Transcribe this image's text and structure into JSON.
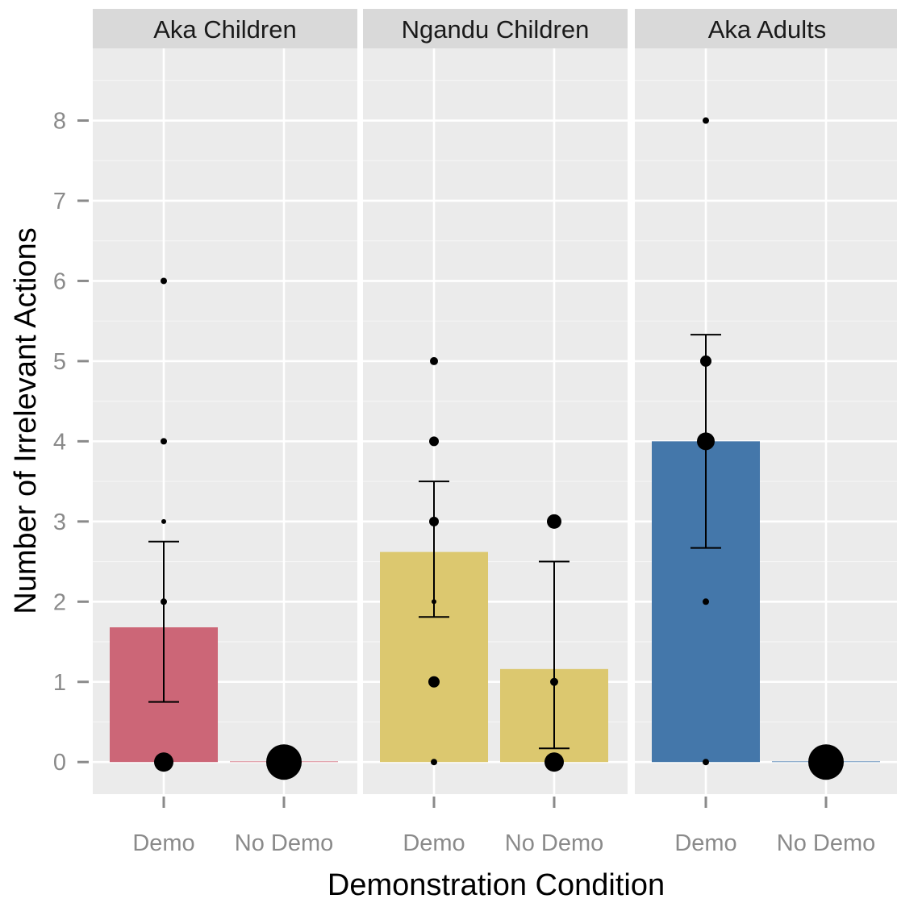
{
  "chart_data": {
    "type": "bar",
    "xlabel": "Demonstration Condition",
    "ylabel": "Number of Irrelevant Actions",
    "ylim": [
      -0.4,
      8.9
    ],
    "y_ticks": [
      0,
      1,
      2,
      3,
      4,
      5,
      6,
      7,
      8
    ],
    "categories": [
      "Demo",
      "No Demo"
    ],
    "grid": true,
    "panels": [
      {
        "label": "Aka Children",
        "bars": [
          {
            "category": "Demo",
            "value": 1.68,
            "error_low": 0.75,
            "error_high": 2.75,
            "color": "#cc6677"
          },
          {
            "category": "No Demo",
            "value": 0.0,
            "error_low": null,
            "error_high": null,
            "color": "#cc6677"
          }
        ],
        "points": [
          {
            "category": "Demo",
            "y": 0,
            "size": 12
          },
          {
            "category": "Demo",
            "y": 2,
            "size": 4
          },
          {
            "category": "Demo",
            "y": 3,
            "size": 3
          },
          {
            "category": "Demo",
            "y": 4,
            "size": 4
          },
          {
            "category": "Demo",
            "y": 6,
            "size": 4
          },
          {
            "category": "No Demo",
            "y": 0,
            "size": 22
          }
        ]
      },
      {
        "label": "Ngandu Children",
        "bars": [
          {
            "category": "Demo",
            "value": 2.62,
            "error_low": 1.81,
            "error_high": 3.5,
            "color": "#dcc86f"
          },
          {
            "category": "No Demo",
            "value": 1.16,
            "error_low": 0.17,
            "error_high": 2.5,
            "color": "#dcc86f"
          }
        ],
        "points": [
          {
            "category": "Demo",
            "y": 0,
            "size": 4
          },
          {
            "category": "Demo",
            "y": 1,
            "size": 7
          },
          {
            "category": "Demo",
            "y": 2,
            "size": 3
          },
          {
            "category": "Demo",
            "y": 3,
            "size": 6
          },
          {
            "category": "Demo",
            "y": 4,
            "size": 6
          },
          {
            "category": "Demo",
            "y": 5,
            "size": 5
          },
          {
            "category": "No Demo",
            "y": 0,
            "size": 12
          },
          {
            "category": "No Demo",
            "y": 1,
            "size": 5
          },
          {
            "category": "No Demo",
            "y": 3,
            "size": 9
          }
        ]
      },
      {
        "label": "Aka Adults",
        "bars": [
          {
            "category": "Demo",
            "value": 4.0,
            "error_low": 2.67,
            "error_high": 5.33,
            "color": "#4477aa"
          },
          {
            "category": "No Demo",
            "value": 0.0,
            "error_low": null,
            "error_high": null,
            "color": "#4477aa"
          }
        ],
        "points": [
          {
            "category": "Demo",
            "y": 0,
            "size": 4
          },
          {
            "category": "Demo",
            "y": 2,
            "size": 4
          },
          {
            "category": "Demo",
            "y": 4,
            "size": 11
          },
          {
            "category": "Demo",
            "y": 5,
            "size": 7
          },
          {
            "category": "Demo",
            "y": 8,
            "size": 4
          },
          {
            "category": "No Demo",
            "y": 0,
            "size": 22
          }
        ]
      }
    ]
  }
}
